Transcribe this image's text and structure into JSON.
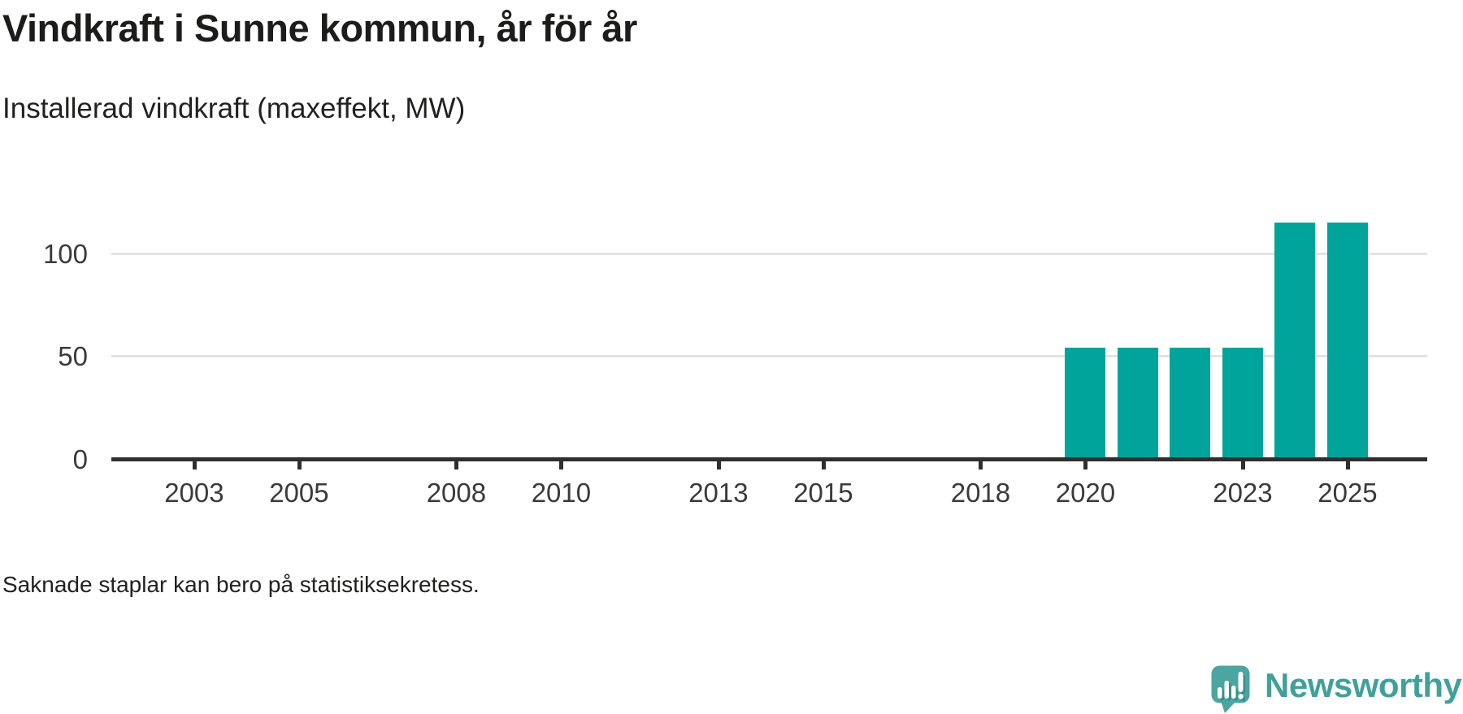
{
  "header": {
    "title": "Vindkraft i Sunne kommun, år för år",
    "subtitle": "Installerad vindkraft (maxeffekt, MW)"
  },
  "footer": {
    "note": "Saknade staplar kan bero på statistiksekretess.",
    "brand": "Newsworthy"
  },
  "colors": {
    "bar": "#00a49b",
    "brand_text": "#41a09a",
    "logo_bubble": "#4ba5a0",
    "logo_shadow": "#37908a",
    "logo_glyph": "#ffffff",
    "axis": "#2f2f2f",
    "gridline": "#e3e3e3"
  },
  "chart_data": {
    "type": "bar",
    "title": "Vindkraft i Sunne kommun, år för år",
    "subtitle": "Installerad vindkraft (maxeffekt, MW)",
    "ylabel": "Installerad vindkraft (maxeffekt, MW)",
    "xlabel": "",
    "unit": "MW",
    "categories": [
      2020,
      2021,
      2022,
      2023,
      2024,
      2025
    ],
    "values": [
      54,
      54,
      54,
      54,
      115,
      115
    ],
    "note": "No bars shown for years before 2020 (missing bars may be due to statistics secrecy)",
    "x_axis": {
      "ticks": [
        2003,
        2005,
        2008,
        2010,
        2013,
        2015,
        2018,
        2020,
        2023,
        2025
      ],
      "range": [
        2001.42,
        2026.52
      ]
    },
    "y_axis": {
      "ticks": [
        0,
        50,
        100
      ],
      "gridlines": [
        50,
        100
      ],
      "range": [
        0,
        120
      ]
    },
    "legend": "none",
    "grid": "horizontal"
  }
}
